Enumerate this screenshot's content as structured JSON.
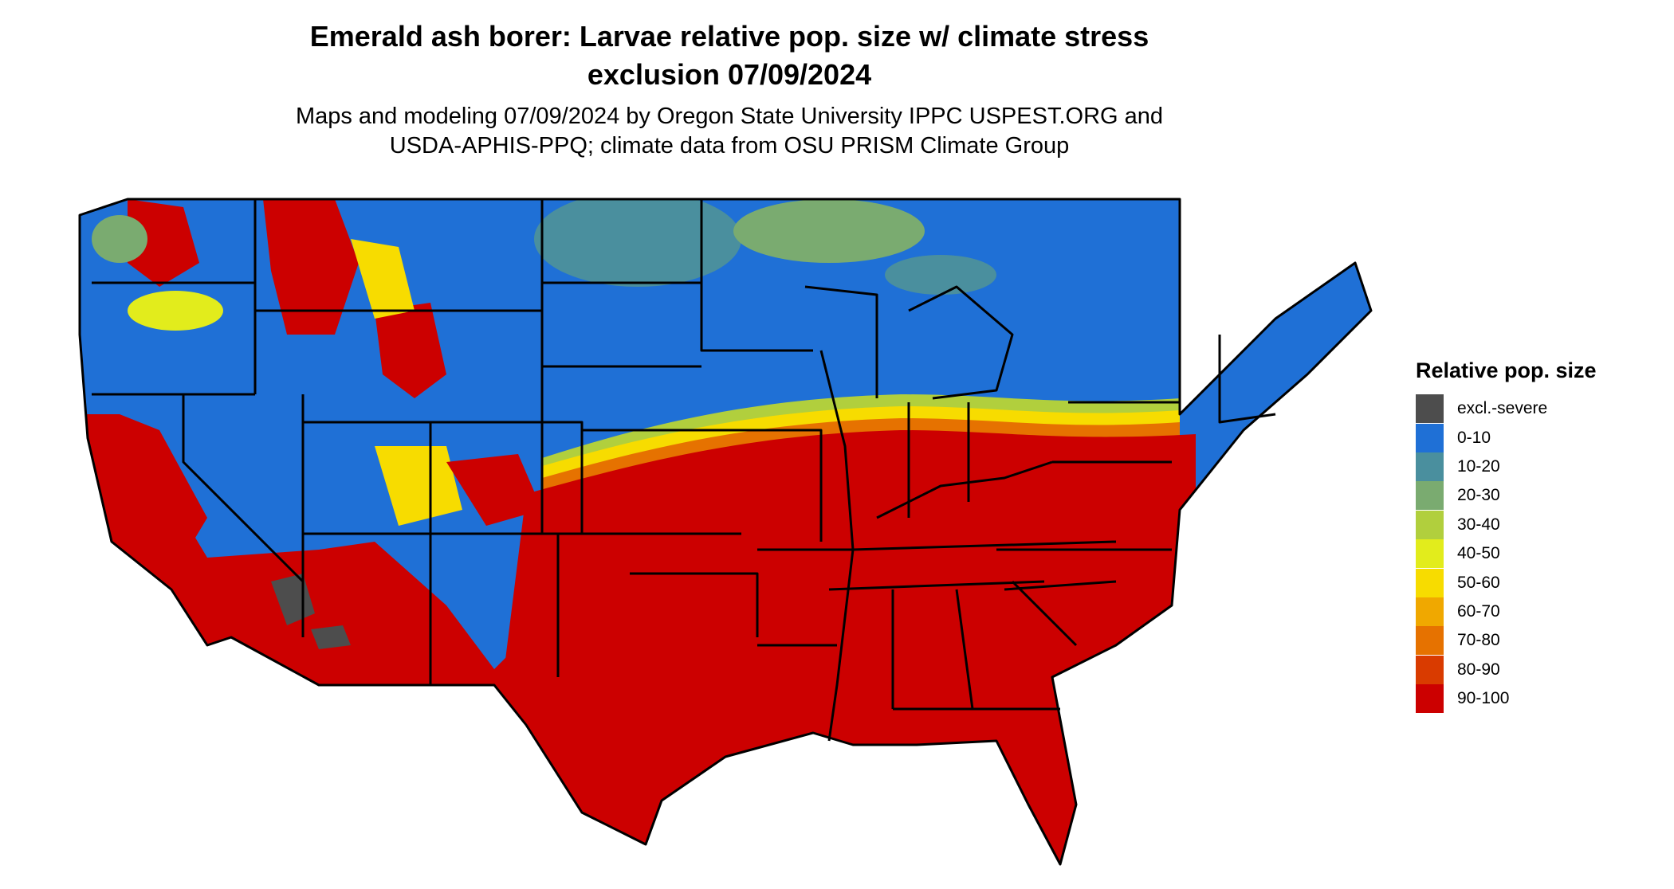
{
  "title_line1": "Emerald ash borer: Larvae relative pop. size w/ climate stress",
  "title_line2": "exclusion 07/09/2024",
  "subtitle_line1": "Maps and modeling 07/09/2024 by Oregon State University IPPC USPEST.ORG and",
  "subtitle_line2": "USDA-APHIS-PPQ; climate data from OSU PRISM Climate Group",
  "legend": {
    "title": "Relative pop. size",
    "items": [
      {
        "label": "excl.-severe",
        "color": "#4d4d4d"
      },
      {
        "label": "0-10",
        "color": "#1f70d6"
      },
      {
        "label": "10-20",
        "color": "#4a8f9e"
      },
      {
        "label": "20-30",
        "color": "#7aab70"
      },
      {
        "label": "30-40",
        "color": "#b1cf3d"
      },
      {
        "label": "40-50",
        "color": "#e2ec1c"
      },
      {
        "label": "50-60",
        "color": "#f7dc00"
      },
      {
        "label": "60-70",
        "color": "#f0a800"
      },
      {
        "label": "70-80",
        "color": "#e67200"
      },
      {
        "label": "80-90",
        "color": "#d93b00"
      },
      {
        "label": "90-100",
        "color": "#cc0000"
      }
    ]
  }
}
